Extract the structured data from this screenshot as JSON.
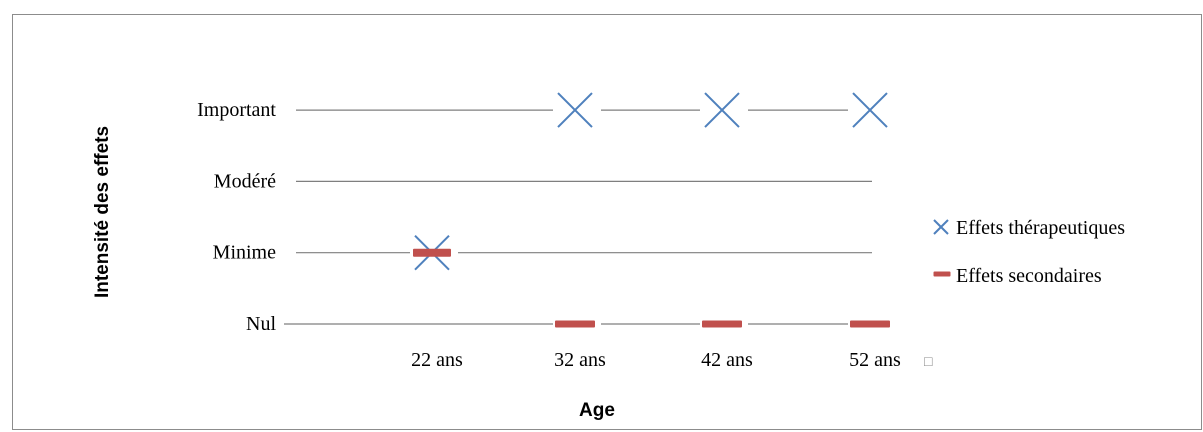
{
  "chart_data": {
    "type": "scatter",
    "categories": [
      "22 ans",
      "32 ans",
      "42 ans",
      "52 ans"
    ],
    "levels": [
      "Nul",
      "Minime",
      "Modéré",
      "Important"
    ],
    "xlabel": "Age",
    "ylabel": "Intensité des effets",
    "ylim": [
      0,
      3
    ],
    "grid": true,
    "legend_position": "right",
    "series": [
      {
        "name": "Effets thérapeutiques",
        "marker": "x",
        "color": "#4f81bd",
        "values": [
          1,
          3,
          3,
          3
        ]
      },
      {
        "name": "Effets secondaires",
        "marker": "dash",
        "color": "#c0504d",
        "values": [
          1,
          0,
          0,
          0
        ]
      }
    ],
    "trailing_glyph": "□"
  }
}
